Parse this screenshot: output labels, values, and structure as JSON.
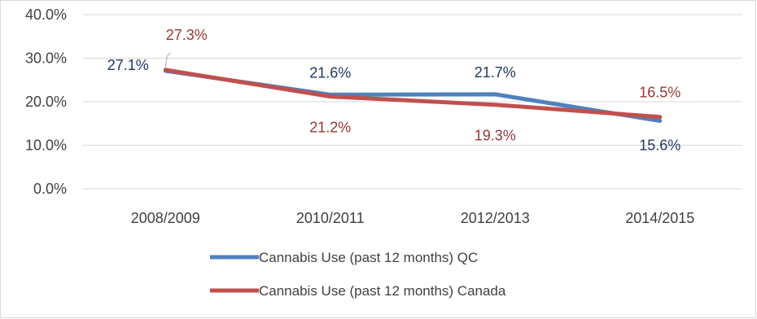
{
  "chart_data": {
    "type": "line",
    "categories": [
      "2008/2009",
      "2010/2011",
      "2012/2013",
      "2014/2015"
    ],
    "ylim": [
      0,
      40
    ],
    "yticks": [
      "0.0%",
      "10.0%",
      "20.0%",
      "30.0%",
      "40.0%"
    ],
    "grid": true,
    "legend_position": "bottom",
    "series": [
      {
        "name": "Cannabis Use (past 12 months) QC",
        "values": [
          27.1,
          21.6,
          21.7,
          15.6
        ],
        "labels": [
          "27.1%",
          "21.6%",
          "21.7%",
          "15.6%"
        ],
        "color": "#4f81bd",
        "label_color": "#1f3864"
      },
      {
        "name": "Cannabis Use (past 12 months) Canada",
        "values": [
          27.3,
          21.2,
          19.3,
          16.5
        ],
        "labels": [
          "27.3%",
          "21.2%",
          "19.3%",
          "16.5%"
        ],
        "color": "#c0504d",
        "label_color": "#953735"
      }
    ]
  }
}
